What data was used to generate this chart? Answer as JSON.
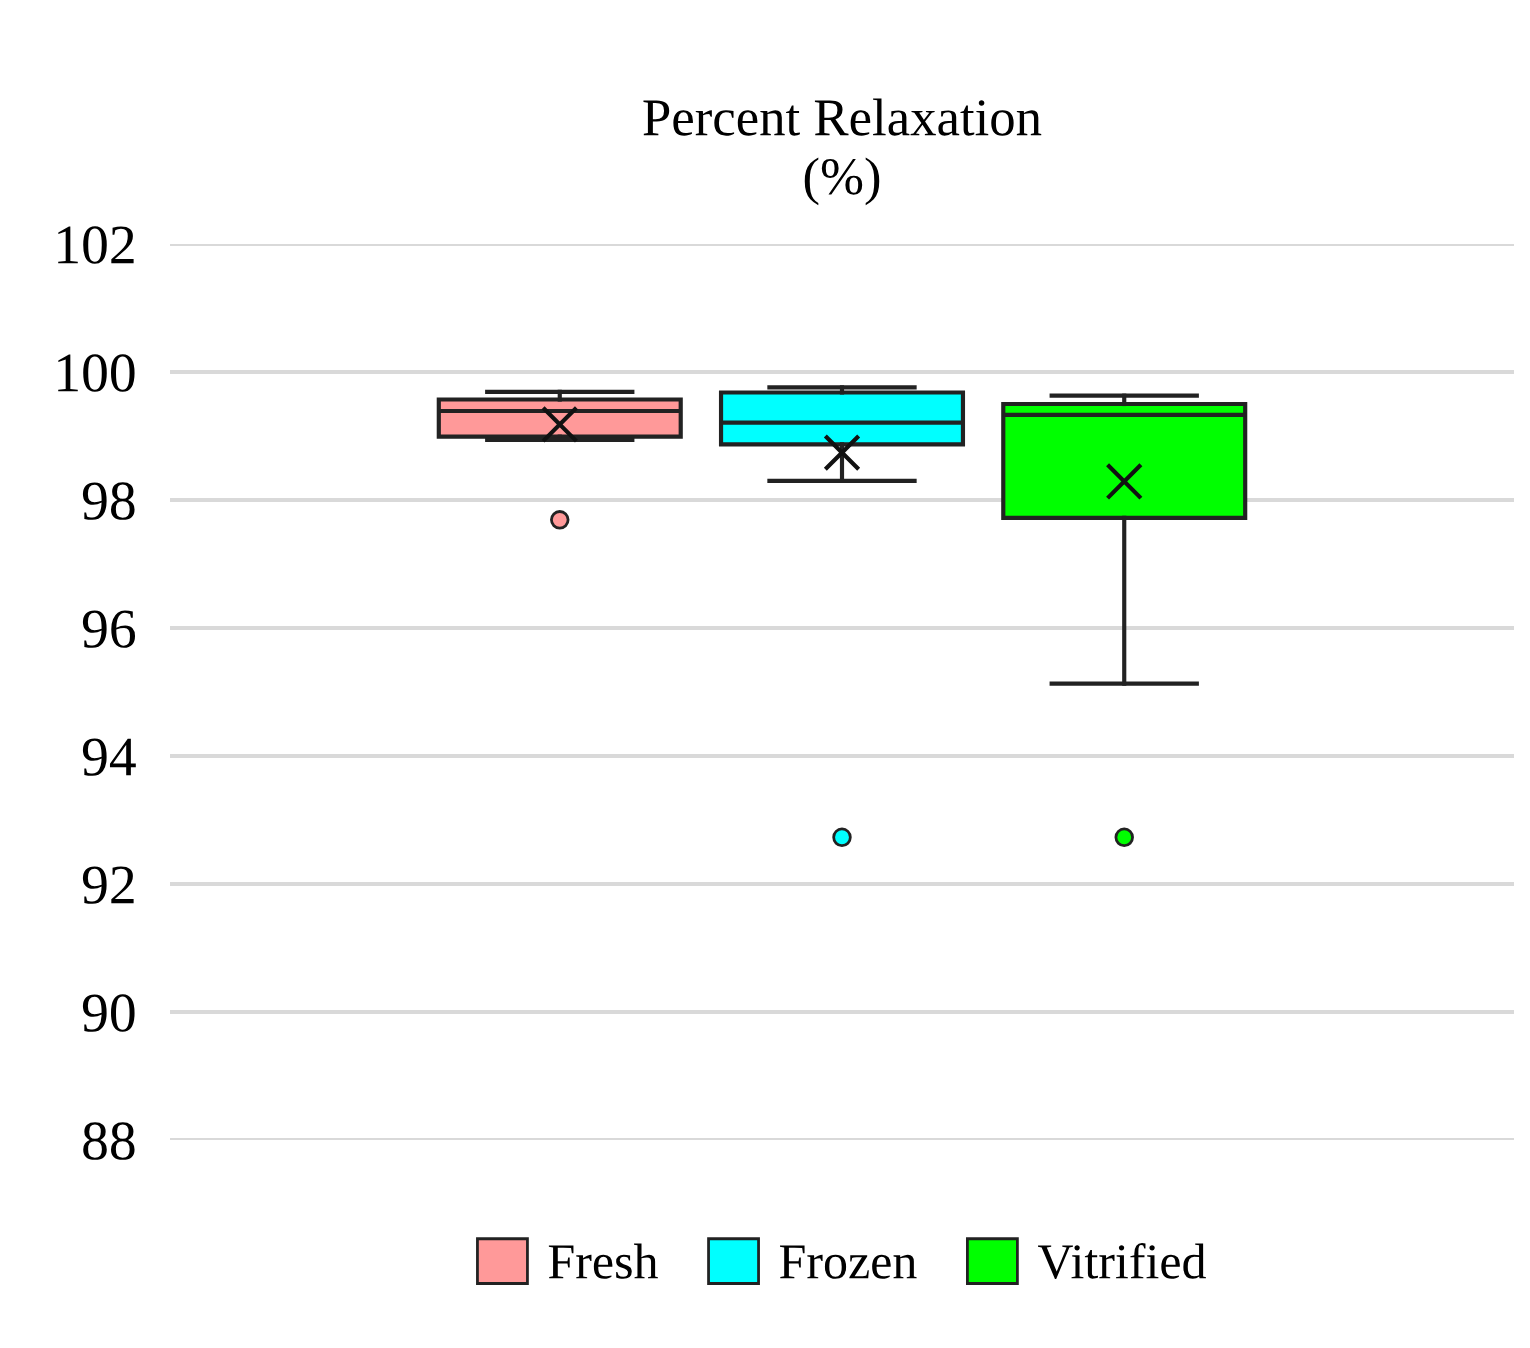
{
  "chart_data": {
    "type": "box",
    "title": "Percent Relaxation\n(%)",
    "categories": [
      null
    ],
    "series": [
      {
        "name": "Fresh",
        "color": "#ff9999",
        "boxes": [
          {
            "low": 98.94,
            "q1": 98.99,
            "median": 99.39,
            "q3": 99.57,
            "high": 99.69,
            "mean": 99.18,
            "outliers": [
              97.69
            ]
          }
        ]
      },
      {
        "name": "Frozen",
        "color": "#00ffff",
        "boxes": [
          {
            "low": 98.3,
            "q1": 98.87,
            "median": 99.21,
            "q3": 99.68,
            "high": 99.76,
            "mean": 98.74,
            "outliers": [
              92.73
            ]
          }
        ]
      },
      {
        "name": "Vitrified",
        "color": "#00ff00",
        "boxes": [
          {
            "low": 95.13,
            "q1": 97.72,
            "median": 99.33,
            "q3": 99.5,
            "high": 99.63,
            "mean": 98.29,
            "outliers": [
              92.73
            ]
          }
        ]
      }
    ],
    "ylim": [
      88,
      102
    ],
    "yticks": [
      88,
      90,
      92,
      94,
      96,
      98,
      100,
      102
    ],
    "grid": "y",
    "legend": "bottom"
  }
}
